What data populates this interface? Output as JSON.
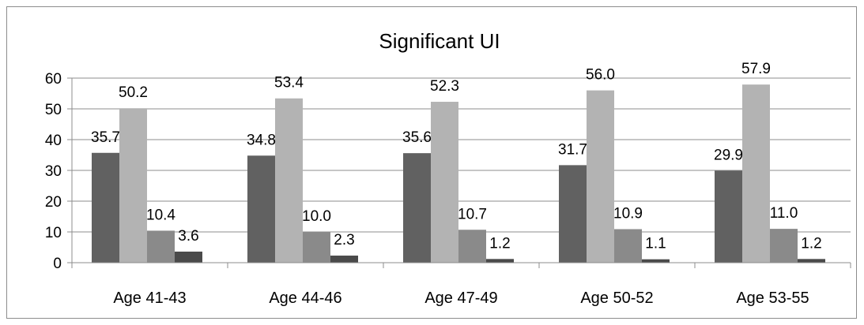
{
  "chart_data": {
    "type": "bar",
    "title": "Significant UI",
    "categories": [
      "Age 41-43",
      "Age 44-46",
      "Age 47-49",
      "Age 50-52",
      "Age 53-55"
    ],
    "series": [
      {
        "values": [
          35.7,
          34.8,
          35.6,
          31.7,
          29.9
        ],
        "labels": [
          "35.7",
          "34.8",
          "35.6",
          "31.7",
          "29.9"
        ],
        "color": "#616161"
      },
      {
        "values": [
          50.2,
          53.4,
          52.3,
          56.0,
          57.9
        ],
        "labels": [
          "50.2",
          "53.4",
          "52.3",
          "56.0",
          "57.9"
        ],
        "color": "#b3b3b3"
      },
      {
        "values": [
          10.4,
          10.0,
          10.7,
          10.9,
          11.0
        ],
        "labels": [
          "10.4",
          "10.0",
          "10.7",
          "10.9",
          "11.0"
        ],
        "color": "#8a8a8a"
      },
      {
        "values": [
          3.6,
          2.3,
          1.2,
          1.1,
          1.2
        ],
        "labels": [
          "3.6",
          "2.3",
          "1.2",
          "1.1",
          "1.2"
        ],
        "color": "#4a4a4a"
      }
    ],
    "ylim": [
      0,
      60
    ],
    "yticks": [
      "0",
      "10",
      "20",
      "30",
      "40",
      "50",
      "60"
    ],
    "grid": true,
    "legend": "none"
  }
}
